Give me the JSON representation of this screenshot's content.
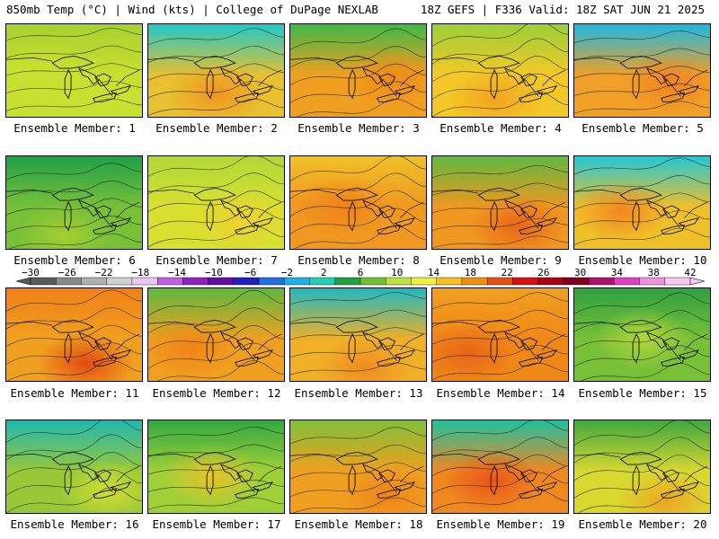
{
  "header": {
    "left": "850mb Temp (°C) | Wind (kts) | College of DuPage NEXLAB",
    "right": "18Z GEFS | F336 Valid: 18Z SAT JUN 21 2025"
  },
  "colorbar": {
    "tick_labels": [
      "−30",
      "−26",
      "−22",
      "−18",
      "−14",
      "−10",
      "−6",
      "−2",
      "2",
      "6",
      "10",
      "14",
      "18",
      "22",
      "26",
      "30",
      "34",
      "38",
      "42"
    ],
    "colors": [
      "#5a5a5a",
      "#8a8a8a",
      "#b0b0b0",
      "#d0d0d0",
      "#e8c8f0",
      "#c060e0",
      "#9020c0",
      "#6010a0",
      "#2020c0",
      "#2070e0",
      "#20b0e8",
      "#20d0b0",
      "#20a040",
      "#70c030",
      "#c0e040",
      "#f0f040",
      "#f8c020",
      "#f09010",
      "#e85010",
      "#d81010",
      "#b00010",
      "#800020",
      "#b01070",
      "#e040c0",
      "#f090e0",
      "#f8c8f0"
    ]
  },
  "members": [
    {
      "label": "Ensemble Member: 1",
      "base": "#c8e030",
      "top": "#a8d030",
      "hot": "#c8e030"
    },
    {
      "label": "Ensemble Member: 2",
      "base": "#e8c030",
      "top": "#20c8c8",
      "hot": "#f09020"
    },
    {
      "label": "Ensemble Member: 3",
      "base": "#f0a020",
      "top": "#40b848",
      "hot": "#f08818"
    },
    {
      "label": "Ensemble Member: 4",
      "base": "#f4c828",
      "top": "#9ad038",
      "hot": "#f0a020"
    },
    {
      "label": "Ensemble Member: 5",
      "base": "#f0a028",
      "top": "#20b8e0",
      "hot": "#f08020"
    },
    {
      "label": "Ensemble Member: 6",
      "base": "#78c038",
      "top": "#20a048",
      "hot": "#a8d030"
    },
    {
      "label": "Ensemble Member: 7",
      "base": "#d8e030",
      "top": "#b0d838",
      "hot": "#f0d030"
    },
    {
      "label": "Ensemble Member: 8",
      "base": "#f09820",
      "top": "#f0c028",
      "hot": "#f08018"
    },
    {
      "label": "Ensemble Member: 9",
      "base": "#f09820",
      "top": "#60b840",
      "hot": "#e86018"
    },
    {
      "label": "Ensemble Member: 10",
      "base": "#f0c028",
      "top": "#20c8d8",
      "hot": "#f08020"
    },
    {
      "label": "Ensemble Member: 11",
      "base": "#f0a020",
      "top": "#f08018",
      "hot": "#e04010"
    },
    {
      "label": "Ensemble Member: 12",
      "base": "#f0a020",
      "top": "#60b840",
      "hot": "#f08018"
    },
    {
      "label": "Ensemble Member: 13",
      "base": "#f0b028",
      "top": "#20b8c0",
      "hot": "#f08820"
    },
    {
      "label": "Ensemble Member: 14",
      "base": "#f08818",
      "top": "#f0a020",
      "hot": "#e86018"
    },
    {
      "label": "Ensemble Member: 15",
      "base": "#78c038",
      "top": "#30a040",
      "hot": "#b8d838"
    },
    {
      "label": "Ensemble Member: 16",
      "base": "#98c838",
      "top": "#20b8b0",
      "hot": "#d8e030"
    },
    {
      "label": "Ensemble Member: 17",
      "base": "#a0d038",
      "top": "#30a840",
      "hot": "#f0c028"
    },
    {
      "label": "Ensemble Member: 18",
      "base": "#f0a020",
      "top": "#80c038",
      "hot": "#f08018"
    },
    {
      "label": "Ensemble Member: 19",
      "base": "#f08820",
      "top": "#20c0a0",
      "hot": "#e85018"
    },
    {
      "label": "Ensemble Member: 20",
      "base": "#d8d830",
      "top": "#40a840",
      "hot": "#f0a020"
    }
  ]
}
